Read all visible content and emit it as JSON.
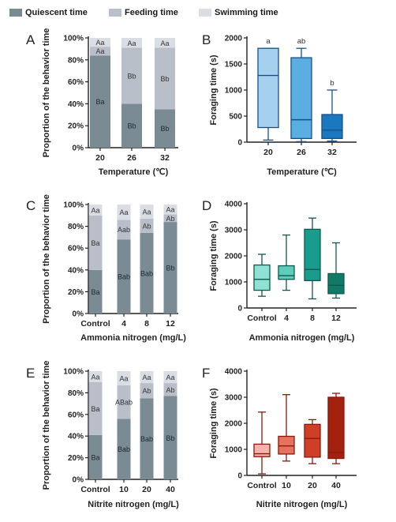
{
  "legend": {
    "items": [
      {
        "label": "Quiescent time",
        "color": "#7b8b94"
      },
      {
        "label": "Feeding time",
        "color": "#b9bfc9"
      },
      {
        "label": "Swimming time",
        "color": "#dadde4"
      }
    ]
  },
  "chart_data": [
    {
      "panel": "A",
      "type": "bar",
      "stacked": true,
      "percent": true,
      "xlabel": "Temperature (℃)",
      "ylabel": "Proportion of the behavior time",
      "ylim": [
        0,
        100
      ],
      "yticks": [
        "0%",
        "20%",
        "40%",
        "60%",
        "80%",
        "100%"
      ],
      "categories": [
        "20",
        "26",
        "32"
      ],
      "series": [
        {
          "name": "Quiescent time",
          "values": [
            84,
            40,
            35
          ],
          "labels": [
            "Ba",
            "Bb",
            "Bb"
          ]
        },
        {
          "name": "Feeding time",
          "values": [
            8,
            51,
            56
          ],
          "labels": [
            "Aa",
            "Bb",
            "Bb"
          ]
        },
        {
          "name": "Swimming time",
          "values": [
            8,
            9,
            9
          ],
          "labels": [
            "Aa",
            "Aa",
            "Aa"
          ]
        }
      ]
    },
    {
      "panel": "B",
      "type": "box",
      "xlabel": "Temperature (℃)",
      "ylabel": "Foraging time (s)",
      "ylim": [
        0,
        2000
      ],
      "yticks": [
        0,
        500,
        1000,
        1500,
        2000
      ],
      "categories": [
        "20",
        "26",
        "32"
      ],
      "boxes": [
        {
          "min": 40,
          "q1": 280,
          "median": 1280,
          "q3": 1800,
          "max": 1800,
          "color": "#a5d1ee",
          "label": "a"
        },
        {
          "min": 10,
          "q1": 70,
          "median": 430,
          "q3": 1620,
          "max": 1800,
          "color": "#5aafe0",
          "label": "ab"
        },
        {
          "min": 20,
          "q1": 70,
          "median": 230,
          "q3": 530,
          "max": 1000,
          "color": "#1b77bf",
          "label": "b"
        }
      ]
    },
    {
      "panel": "C",
      "type": "bar",
      "stacked": true,
      "percent": true,
      "xlabel": "Ammonia nitrogen (mg/L)",
      "ylabel": "Proportion of the behavior time",
      "ylim": [
        0,
        100
      ],
      "yticks": [
        "0%",
        "20%",
        "40%",
        "60%",
        "80%",
        "100%"
      ],
      "categories": [
        "Control",
        "4",
        "8",
        "12"
      ],
      "series": [
        {
          "name": "Quiescent time",
          "values": [
            40,
            68,
            74,
            84
          ],
          "labels": [
            "Ba",
            "Bab",
            "Bab",
            "Bb"
          ]
        },
        {
          "name": "Feeding time",
          "values": [
            50,
            18,
            13,
            7
          ],
          "labels": [
            "Ba",
            "Aab",
            "Ab",
            "Ab"
          ]
        },
        {
          "name": "Swimming time",
          "values": [
            10,
            14,
            13,
            9
          ],
          "labels": [
            "Aa",
            "Aa",
            "Aa",
            "Aa"
          ]
        }
      ]
    },
    {
      "panel": "D",
      "type": "box",
      "xlabel": "Ammonia nitrogen (mg/L)",
      "ylabel": "Foraging time (s)",
      "ylim": [
        0,
        4000
      ],
      "yticks": [
        0,
        1000,
        2000,
        3000,
        4000
      ],
      "categories": [
        "Control",
        "4",
        "8",
        "12"
      ],
      "boxes": [
        {
          "min": 450,
          "q1": 680,
          "median": 1100,
          "q3": 1650,
          "max": 2060,
          "color": "#8fe1d3"
        },
        {
          "min": 680,
          "q1": 1100,
          "median": 1240,
          "q3": 1620,
          "max": 2800,
          "color": "#5ecbbb"
        },
        {
          "min": 350,
          "q1": 1050,
          "median": 1480,
          "q3": 3020,
          "max": 3450,
          "color": "#1a9c8c"
        },
        {
          "min": 380,
          "q1": 550,
          "median": 870,
          "q3": 1320,
          "max": 2500,
          "color": "#0f7a68"
        }
      ]
    },
    {
      "panel": "E",
      "type": "bar",
      "stacked": true,
      "percent": true,
      "xlabel": "Nitrite nitrogen (mg/L)",
      "ylabel": "Proportion of the behavior time",
      "ylim": [
        0,
        100
      ],
      "yticks": [
        "0%",
        "20%",
        "40%",
        "60%",
        "80%",
        "100%"
      ],
      "categories": [
        "Control",
        "10",
        "20",
        "40"
      ],
      "series": [
        {
          "name": "Quiescent time",
          "values": [
            41,
            56,
            75,
            77
          ],
          "labels": [
            "Ba",
            "Bab",
            "Bab",
            "Bb"
          ]
        },
        {
          "name": "Feeding time",
          "values": [
            49,
            31,
            14,
            12
          ],
          "labels": [
            "Ba",
            "ABab",
            "Ab",
            "Ab"
          ]
        },
        {
          "name": "Swimming time",
          "values": [
            10,
            13,
            11,
            11
          ],
          "labels": [
            "Aa",
            "Aa",
            "Aa",
            "Aa"
          ]
        }
      ]
    },
    {
      "panel": "F",
      "type": "box",
      "xlabel": "Nitrite nitrogen (mg/L)",
      "ylabel": "Foraging time (s)",
      "ylim": [
        0,
        4000
      ],
      "yticks": [
        0,
        1000,
        2000,
        3000,
        4000
      ],
      "categories": [
        "Control",
        "10",
        "20",
        "40"
      ],
      "boxes": [
        {
          "min": 60,
          "q1": 720,
          "median": 830,
          "q3": 1200,
          "max": 2430,
          "color": "#f6b3aa"
        },
        {
          "min": 550,
          "q1": 820,
          "median": 1130,
          "q3": 1500,
          "max": 3100,
          "color": "#e6715f"
        },
        {
          "min": 450,
          "q1": 700,
          "median": 1420,
          "q3": 1960,
          "max": 2140,
          "color": "#cf3e27"
        },
        {
          "min": 450,
          "q1": 650,
          "median": 880,
          "q3": 3000,
          "max": 3150,
          "color": "#a3220f"
        }
      ]
    }
  ]
}
